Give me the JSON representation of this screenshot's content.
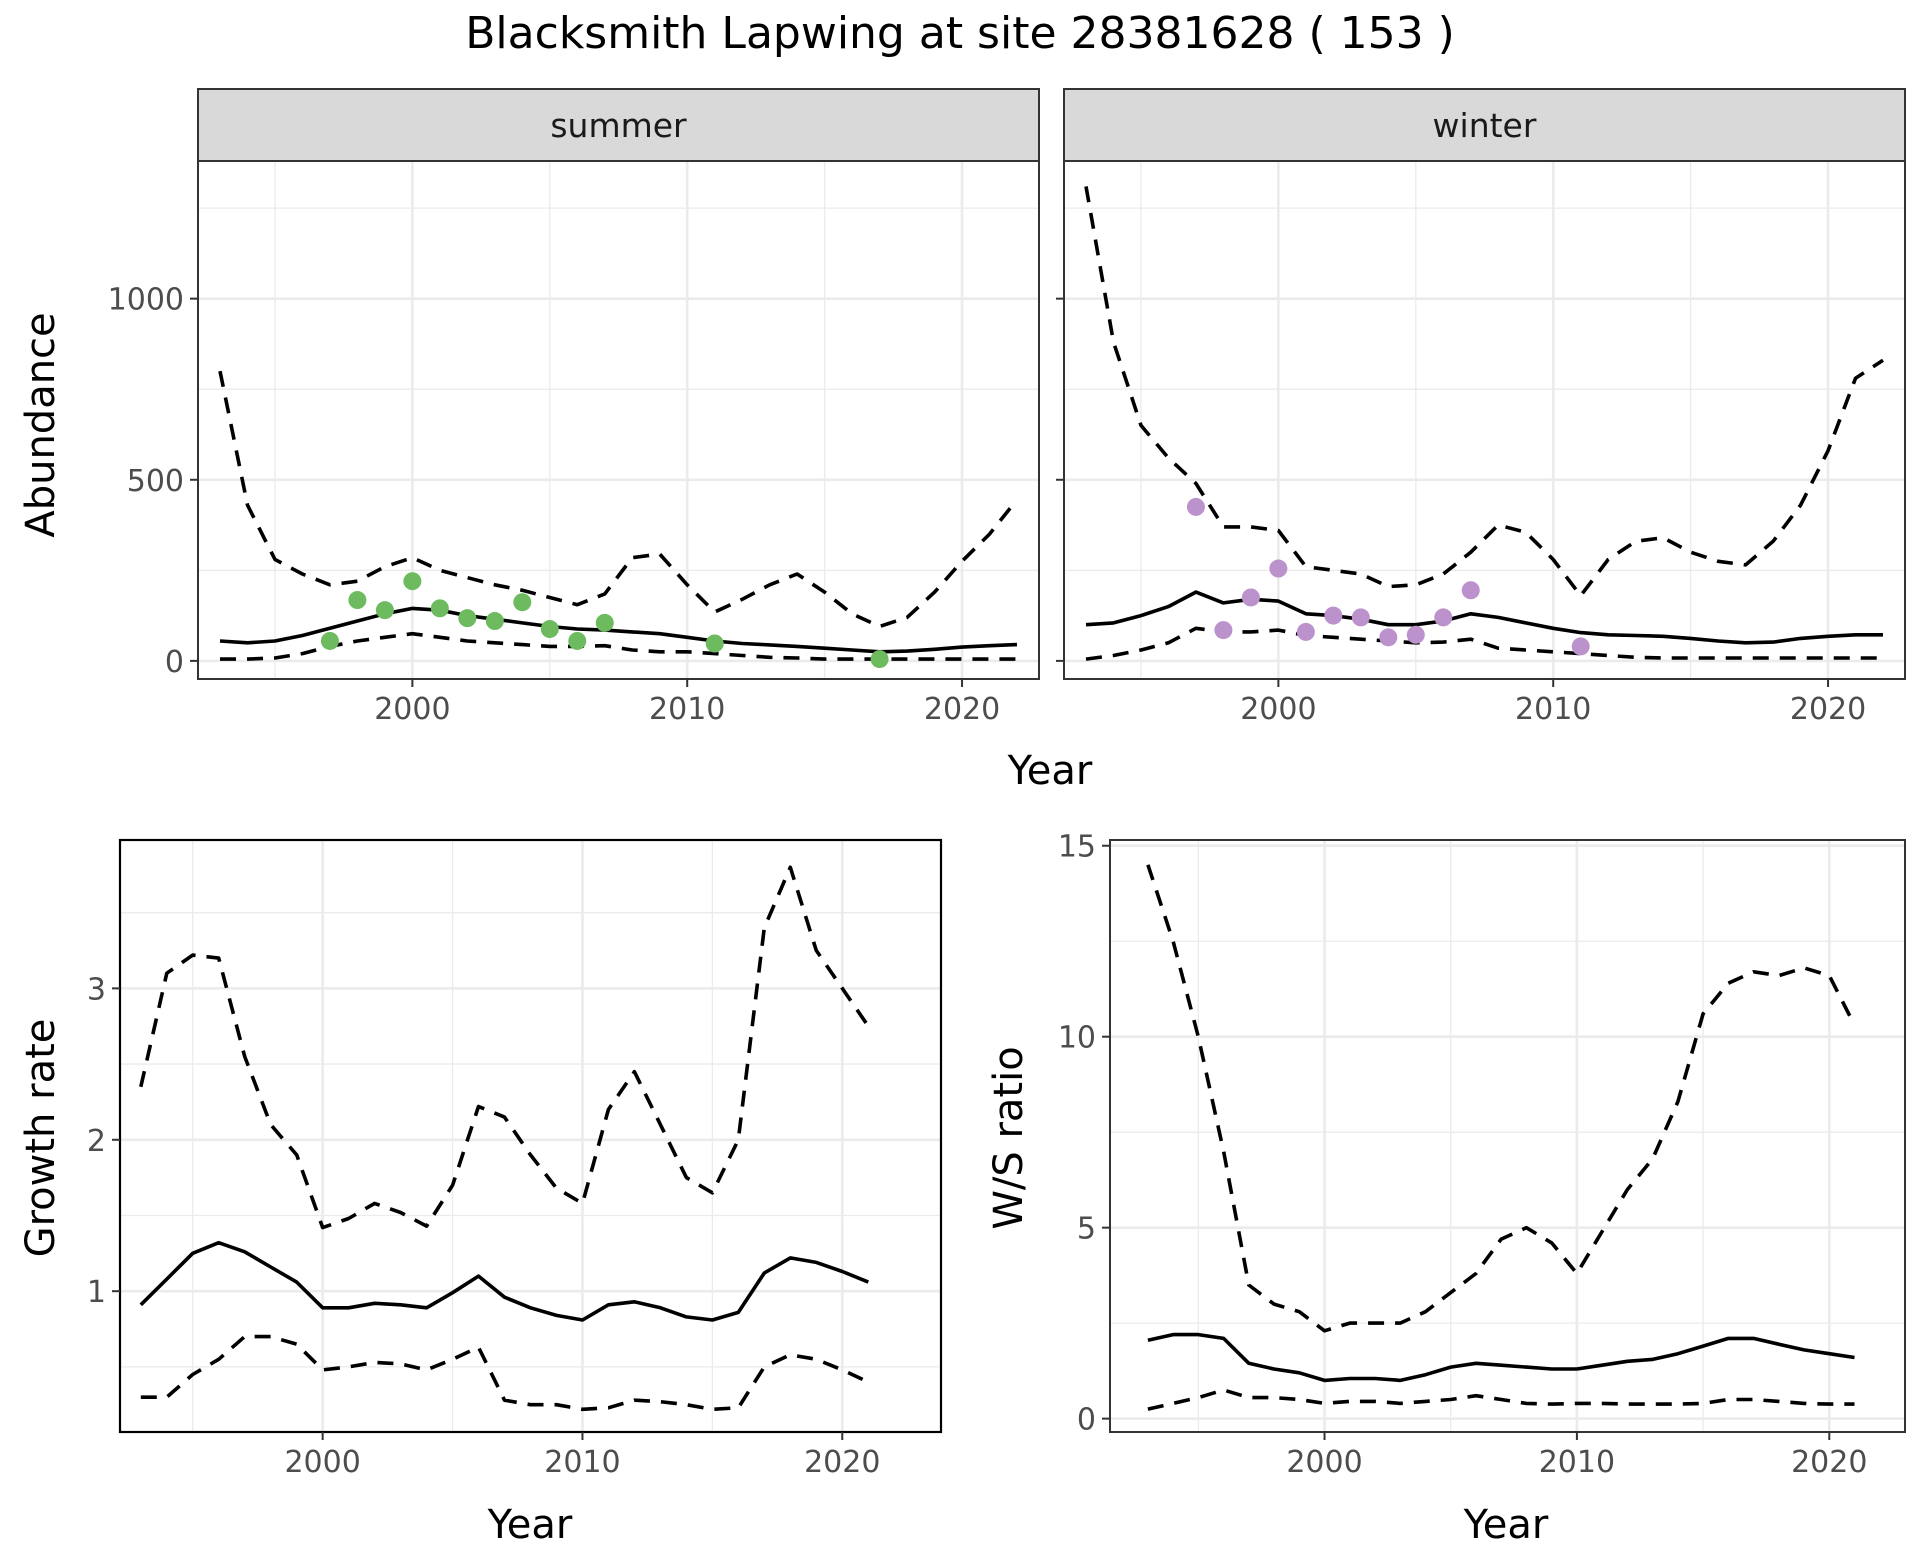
{
  "title": "Blacksmith Lapwing at site 28381628 ( 153 )",
  "colors": {
    "summer_points": "#6dbb5e",
    "winter_points": "#bb92cc"
  },
  "chart_data": [
    {
      "type": "line",
      "panel": "abundance",
      "facets": [
        "summer",
        "winter"
      ],
      "xlabel": "Year",
      "ylabel": "Abundance",
      "xlim": [
        1992.2,
        2022.8
      ],
      "ylim": [
        -50,
        1380
      ],
      "xticks": [
        2000,
        2010,
        2020
      ],
      "yticks": [
        0,
        500,
        1000
      ],
      "grid": true,
      "summer": {
        "x": [
          1993,
          1994,
          1995,
          1996,
          1997,
          1998,
          1999,
          2000,
          2001,
          2002,
          2003,
          2004,
          2005,
          2006,
          2007,
          2008,
          2009,
          2010,
          2011,
          2012,
          2013,
          2014,
          2015,
          2016,
          2017,
          2018,
          2019,
          2020,
          2021,
          2022
        ],
        "mean": [
          55,
          50,
          55,
          70,
          90,
          110,
          130,
          145,
          140,
          125,
          115,
          105,
          95,
          88,
          85,
          80,
          75,
          65,
          55,
          48,
          44,
          40,
          35,
          30,
          25,
          27,
          32,
          38,
          42,
          45
        ],
        "upper": [
          800,
          430,
          280,
          240,
          210,
          220,
          260,
          285,
          250,
          230,
          210,
          195,
          175,
          155,
          185,
          285,
          295,
          210,
          135,
          170,
          210,
          240,
          190,
          130,
          95,
          120,
          190,
          275,
          350,
          445
        ],
        "lower": [
          5,
          5,
          8,
          20,
          40,
          55,
          65,
          75,
          65,
          55,
          50,
          45,
          40,
          40,
          42,
          30,
          25,
          25,
          20,
          15,
          10,
          8,
          5,
          5,
          5,
          5,
          5,
          5,
          5,
          5
        ],
        "observed": {
          "x": [
            1997,
            1998,
            1999,
            2000,
            2001,
            2002,
            2003,
            2004,
            2005,
            2006,
            2007,
            2011,
            2017
          ],
          "y": [
            55,
            168,
            140,
            220,
            145,
            118,
            110,
            162,
            88,
            55,
            105,
            48,
            5
          ]
        }
      },
      "winter": {
        "x": [
          1993,
          1994,
          1995,
          1996,
          1997,
          1998,
          1999,
          2000,
          2001,
          2002,
          2003,
          2004,
          2005,
          2006,
          2007,
          2008,
          2009,
          2010,
          2011,
          2012,
          2013,
          2014,
          2015,
          2016,
          2017,
          2018,
          2019,
          2020,
          2021,
          2022
        ],
        "mean": [
          100,
          105,
          125,
          150,
          190,
          160,
          170,
          165,
          130,
          125,
          115,
          100,
          100,
          110,
          130,
          120,
          105,
          90,
          78,
          72,
          70,
          68,
          62,
          55,
          50,
          52,
          62,
          68,
          72,
          72
        ],
        "upper": [
          1310,
          880,
          650,
          560,
          490,
          370,
          370,
          360,
          260,
          250,
          240,
          205,
          210,
          240,
          300,
          375,
          355,
          280,
          180,
          280,
          330,
          340,
          300,
          275,
          265,
          330,
          430,
          580,
          780,
          830
        ],
        "lower": [
          5,
          15,
          30,
          50,
          90,
          80,
          80,
          85,
          70,
          65,
          60,
          55,
          50,
          52,
          60,
          35,
          30,
          25,
          20,
          15,
          10,
          8,
          8,
          8,
          8,
          8,
          8,
          8,
          8,
          8
        ],
        "observed": {
          "x": [
            1997,
            1998,
            1999,
            2000,
            2001,
            2002,
            2003,
            2004,
            2005,
            2006,
            2007,
            2011
          ],
          "y": [
            425,
            85,
            175,
            255,
            80,
            125,
            120,
            65,
            72,
            120,
            195,
            40
          ]
        }
      }
    },
    {
      "type": "line",
      "panel": "growth-rate",
      "xlabel": "Year",
      "ylabel": "Growth rate",
      "xlim": [
        1992.2,
        2023.8
      ],
      "ylim": [
        0.07,
        3.98
      ],
      "xticks": [
        2000,
        2010,
        2020
      ],
      "yticks": [
        1,
        2,
        3
      ],
      "grid": true,
      "x": [
        1993,
        1994,
        1995,
        1996,
        1997,
        1998,
        1999,
        2000,
        2001,
        2002,
        2003,
        2004,
        2005,
        2006,
        2007,
        2008,
        2009,
        2010,
        2011,
        2012,
        2013,
        2014,
        2015,
        2016,
        2017,
        2018,
        2019,
        2020,
        2021
      ],
      "mean": [
        0.91,
        1.08,
        1.25,
        1.32,
        1.26,
        1.16,
        1.06,
        0.89,
        0.89,
        0.92,
        0.91,
        0.89,
        0.99,
        1.1,
        0.96,
        0.89,
        0.84,
        0.81,
        0.91,
        0.93,
        0.89,
        0.83,
        0.81,
        0.86,
        1.12,
        1.22,
        1.19,
        1.13,
        1.06
      ],
      "upper": [
        2.35,
        3.1,
        3.22,
        3.2,
        2.55,
        2.1,
        1.9,
        1.42,
        1.48,
        1.58,
        1.52,
        1.43,
        1.7,
        2.22,
        2.15,
        1.9,
        1.68,
        1.58,
        2.2,
        2.45,
        2.1,
        1.75,
        1.65,
        2.0,
        3.4,
        3.8,
        3.25,
        3.0,
        2.75
      ],
      "lower": [
        0.3,
        0.3,
        0.45,
        0.55,
        0.7,
        0.7,
        0.65,
        0.48,
        0.5,
        0.53,
        0.52,
        0.48,
        0.55,
        0.63,
        0.28,
        0.25,
        0.25,
        0.22,
        0.23,
        0.28,
        0.27,
        0.25,
        0.22,
        0.23,
        0.5,
        0.58,
        0.55,
        0.48,
        0.4
      ]
    },
    {
      "type": "line",
      "panel": "ws-ratio",
      "xlabel": "Year",
      "ylabel": "W/S ratio",
      "xlim": [
        1991.5,
        2023.0
      ],
      "ylim": [
        -0.35,
        15.15
      ],
      "xticks": [
        2000,
        2010,
        2020
      ],
      "yticks": [
        0,
        5,
        10,
        15
      ],
      "grid": true,
      "x": [
        1993,
        1994,
        1995,
        1996,
        1997,
        1998,
        1999,
        2000,
        2001,
        2002,
        2003,
        2004,
        2005,
        2006,
        2007,
        2008,
        2009,
        2010,
        2011,
        2012,
        2013,
        2014,
        2015,
        2016,
        2017,
        2018,
        2019,
        2020,
        2021
      ],
      "mean": [
        2.05,
        2.2,
        2.2,
        2.1,
        1.45,
        1.3,
        1.2,
        1.0,
        1.05,
        1.05,
        1.0,
        1.15,
        1.35,
        1.45,
        1.4,
        1.35,
        1.3,
        1.3,
        1.4,
        1.5,
        1.55,
        1.7,
        1.9,
        2.1,
        2.1,
        1.95,
        1.8,
        1.7,
        1.6
      ],
      "upper": [
        14.5,
        12.5,
        10.0,
        7.0,
        3.5,
        3.0,
        2.8,
        2.3,
        2.5,
        2.5,
        2.5,
        2.8,
        3.3,
        3.8,
        4.7,
        5.0,
        4.6,
        3.8,
        4.9,
        6.0,
        6.8,
        8.3,
        10.6,
        11.4,
        11.7,
        11.6,
        11.8,
        11.6,
        10.3
      ],
      "lower": [
        0.25,
        0.4,
        0.55,
        0.75,
        0.55,
        0.55,
        0.5,
        0.4,
        0.45,
        0.45,
        0.4,
        0.45,
        0.5,
        0.6,
        0.5,
        0.4,
        0.38,
        0.4,
        0.4,
        0.38,
        0.38,
        0.38,
        0.4,
        0.5,
        0.5,
        0.45,
        0.4,
        0.38,
        0.38
      ]
    }
  ]
}
